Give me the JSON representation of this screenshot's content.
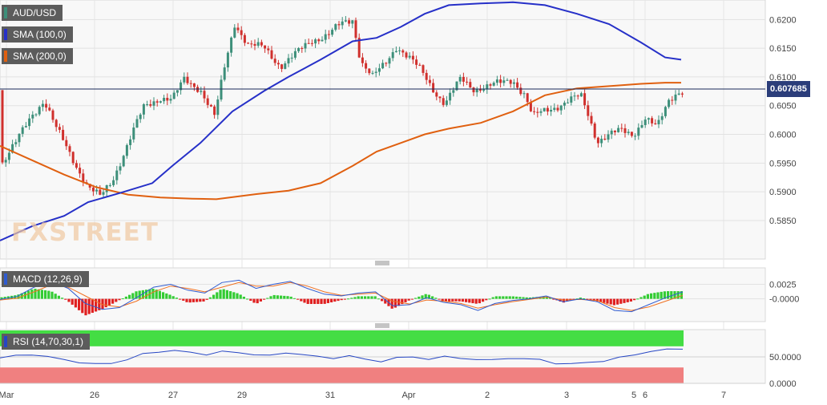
{
  "legend": {
    "symbol": "AUD/USD",
    "sma100_label": "SMA (100,0)",
    "sma200_label": "SMA (200,0)",
    "macd_label": "MACD (12,26,9)",
    "rsi_label": "RSI (14,70,30,1)"
  },
  "watermark": {
    "fx": "FX",
    "street": "STREET"
  },
  "last_price": "0.607685",
  "colors": {
    "up": "#3d8f7a",
    "down": "#d0302d",
    "sma100": "#2630c8",
    "sma200": "#e06010",
    "macd_line": "#2f5bd0",
    "signal_line": "#f07020",
    "hist_pos": "#33cc33",
    "hist_neg": "#e02020",
    "rsi_line": "#2646c4",
    "overbought": "#44dd44",
    "oversold": "#f08080",
    "last_price_bg": "#2b3d7a"
  },
  "chart_data": [
    {
      "type": "candlestick",
      "title": "AUD/USD",
      "x_tick_labels": [
        "Mar",
        "26",
        "27",
        "29",
        "31",
        "Apr",
        "2",
        "3",
        "5",
        "6",
        "7"
      ],
      "y_ticks": [
        "0.5850",
        "0.5900",
        "0.5950",
        "0.6000",
        "0.6050",
        "0.6100",
        "0.6150",
        "0.6200"
      ],
      "ylim": [
        0.5815,
        0.622
      ],
      "last_price": 0.607685,
      "series": [
        {
          "name": "SMA (100,0)",
          "points": [
            [
              0,
              0.5815
            ],
            [
              40,
              0.584
            ],
            [
              80,
              0.5858
            ],
            [
              110,
              0.5882
            ],
            [
              150,
              0.5898
            ],
            [
              190,
              0.5915
            ],
            [
              215,
              0.5945
            ],
            [
              250,
              0.5985
            ],
            [
              290,
              0.604
            ],
            [
              330,
              0.6076
            ],
            [
              360,
              0.61
            ],
            [
              400,
              0.613
            ],
            [
              440,
              0.6162
            ],
            [
              470,
              0.6168
            ],
            [
              500,
              0.6187
            ],
            [
              530,
              0.621
            ],
            [
              560,
              0.6225
            ],
            [
              600,
              0.6228
            ],
            [
              640,
              0.623
            ],
            [
              680,
              0.6225
            ],
            [
              720,
              0.621
            ],
            [
              760,
              0.6192
            ],
            [
              800,
              0.616
            ],
            [
              830,
              0.6134
            ],
            [
              850,
              0.613
            ]
          ]
        },
        {
          "name": "SMA (200,0)",
          "points": [
            [
              0,
              0.598
            ],
            [
              40,
              0.5955
            ],
            [
              80,
              0.593
            ],
            [
              120,
              0.5908
            ],
            [
              160,
              0.5895
            ],
            [
              200,
              0.589
            ],
            [
              240,
              0.5888
            ],
            [
              270,
              0.5887
            ],
            [
              320,
              0.5896
            ],
            [
              360,
              0.5902
            ],
            [
              400,
              0.5915
            ],
            [
              440,
              0.5945
            ],
            [
              470,
              0.597
            ],
            [
              500,
              0.5985
            ],
            [
              530,
              0.6
            ],
            [
              560,
              0.601
            ],
            [
              600,
              0.602
            ],
            [
              640,
              0.604
            ],
            [
              680,
              0.6068
            ],
            [
              720,
              0.608
            ],
            [
              760,
              0.6084
            ],
            [
              800,
              0.6088
            ],
            [
              830,
              0.609
            ],
            [
              850,
              0.609
            ]
          ]
        },
        {
          "name": "candles",
          "ohlc_note": "hourly bars",
          "close_path": [
            [
              2,
              0.595
            ],
            [
              20,
              0.5985
            ],
            [
              40,
              0.6035
            ],
            [
              55,
              0.606
            ],
            [
              70,
              0.601
            ],
            [
              90,
              0.596
            ],
            [
              110,
              0.5908
            ],
            [
              125,
              0.589
            ],
            [
              140,
              0.592
            ],
            [
              160,
              0.5985
            ],
            [
              180,
              0.6048
            ],
            [
              200,
              0.6065
            ],
            [
              215,
              0.606
            ],
            [
              230,
              0.6095
            ],
            [
              250,
              0.608
            ],
            [
              268,
              0.603
            ],
            [
              280,
              0.6115
            ],
            [
              293,
              0.6195
            ],
            [
              310,
              0.6155
            ],
            [
              330,
              0.615
            ],
            [
              350,
              0.612
            ],
            [
              370,
              0.614
            ],
            [
              390,
              0.6165
            ],
            [
              410,
              0.6175
            ],
            [
              425,
              0.619
            ],
            [
              440,
              0.62
            ],
            [
              450,
              0.613
            ],
            [
              465,
              0.61
            ],
            [
              480,
              0.612
            ],
            [
              495,
              0.6155
            ],
            [
              510,
              0.6135
            ],
            [
              525,
              0.611
            ],
            [
              540,
              0.608
            ],
            [
              555,
              0.6055
            ],
            [
              565,
              0.6075
            ],
            [
              575,
              0.6095
            ],
            [
              590,
              0.608
            ],
            [
              610,
              0.6085
            ],
            [
              625,
              0.6088
            ],
            [
              640,
              0.6095
            ],
            [
              655,
              0.607
            ],
            [
              665,
              0.603
            ],
            [
              680,
              0.604
            ],
            [
              695,
              0.605
            ],
            [
              710,
              0.606
            ],
            [
              725,
              0.6065
            ],
            [
              735,
              0.603
            ],
            [
              745,
              0.599
            ],
            [
              760,
              0.6
            ],
            [
              775,
              0.6005
            ],
            [
              790,
              0.6
            ],
            [
              805,
              0.603
            ],
            [
              820,
              0.601
            ],
            [
              835,
              0.606
            ],
            [
              845,
              0.6075
            ],
            [
              852,
              0.6077
            ]
          ]
        }
      ]
    },
    {
      "type": "line",
      "title": "MACD (12,26,9)",
      "y_ticks": [
        "0.0025",
        "-0.0000"
      ],
      "ylim": [
        -0.0035,
        0.0045
      ],
      "series": [
        {
          "name": "MACD",
          "values": [
            -0.0001,
            0.0004,
            0.002,
            0.003,
            0.0018,
            -0.0008,
            -0.0018,
            -0.0015,
            0.0002,
            0.002,
            0.0025,
            0.0015,
            0.001,
            0.0028,
            0.0032,
            0.0018,
            0.0025,
            0.003,
            0.0018,
            0.0008,
            0.0005,
            0.001,
            0.0012,
            -0.0012,
            -0.001,
            0.0002,
            -0.0006,
            -0.001,
            -0.002,
            -0.0008,
            -0.0003,
            0.0,
            0.0005,
            -0.0005,
            0.0,
            -0.0005,
            -0.002,
            -0.0022,
            -0.001,
            0.0002,
            0.0012
          ]
        },
        {
          "name": "Signal",
          "values": [
            -0.0002,
            0.0001,
            0.0012,
            0.0024,
            0.002,
            0.0005,
            -0.001,
            -0.0014,
            -0.0004,
            0.0012,
            0.0022,
            0.0018,
            0.0012,
            0.002,
            0.0028,
            0.0022,
            0.0022,
            0.0028,
            0.0022,
            0.0012,
            0.0006,
            0.0008,
            0.001,
            -0.0004,
            -0.0009,
            -0.0002,
            -0.0004,
            -0.0008,
            -0.0016,
            -0.001,
            -0.0005,
            -0.0001,
            0.0003,
            -0.0002,
            -0.0001,
            -0.0003,
            -0.0015,
            -0.002,
            -0.0014,
            -0.0004,
            0.0006
          ]
        }
      ]
    },
    {
      "type": "line",
      "title": "RSI (14,70,30,1)",
      "y_ticks": [
        "50.0000",
        "0.0000"
      ],
      "ylim": [
        0,
        100
      ],
      "overbought": 70,
      "oversold": 30,
      "series": [
        {
          "name": "RSI",
          "values": [
            48,
            52,
            55,
            50,
            45,
            40,
            36,
            38,
            45,
            55,
            60,
            62,
            58,
            55,
            60,
            58,
            55,
            52,
            58,
            55,
            50,
            48,
            52,
            45,
            42,
            48,
            50,
            46,
            50,
            48,
            45,
            44,
            48,
            46,
            45,
            38,
            36,
            40,
            42,
            48,
            55,
            60,
            64,
            66
          ]
        }
      ]
    }
  ]
}
